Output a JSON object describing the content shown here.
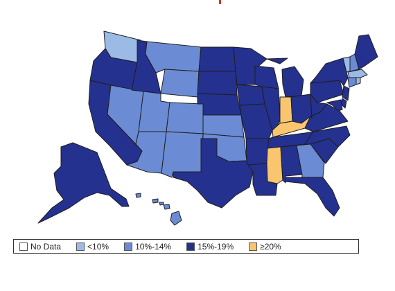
{
  "legend": {
    "items": [
      {
        "label": "No Data",
        "color": "#ffffff"
      },
      {
        "label": "<10%",
        "color": "#9bbbe6"
      },
      {
        "label": "10%-14%",
        "color": "#6b8bd4"
      },
      {
        "label": "15%-19%",
        "color": "#24318f"
      },
      {
        "label": "≥20%",
        "color": "#f9c56e"
      }
    ]
  },
  "map": {
    "category_colors": {
      "no_data": "#ffffff",
      "lt10": "#9bbbe6",
      "p10_14": "#6b8bd4",
      "p15_19": "#24318f",
      "ge20": "#f9c56e"
    },
    "states": {
      "WA": "lt10",
      "OR": "p15_19",
      "CA": "p15_19",
      "NV": "p10_14",
      "ID": "p15_19",
      "MT": "p10_14",
      "WY": "p10_14",
      "UT": "p10_14",
      "AZ": "p10_14",
      "CO": "p10_14",
      "NM": "p10_14",
      "ND": "p15_19",
      "SD": "p15_19",
      "NE": "p15_19",
      "KS": "p10_14",
      "OK": "p10_14",
      "TX": "p15_19",
      "MN": "p15_19",
      "IA": "p15_19",
      "MO": "p15_19",
      "AR": "p15_19",
      "LA": "p15_19",
      "WI": "p15_19",
      "IL": "p15_19",
      "MS": "ge20",
      "MI": "p15_19",
      "IN": "ge20",
      "KY": "ge20",
      "TN": "p15_19",
      "AL": "p15_19",
      "GA": "p10_14",
      "FL": "p15_19",
      "OH": "p15_19",
      "WV": "p15_19",
      "SC": "p15_19",
      "NC": "p15_19",
      "VA": "p15_19",
      "PA": "p15_19",
      "NY": "p15_19",
      "VT": "lt10",
      "NH": "p10_14",
      "ME": "p15_19",
      "MA": "lt10",
      "CT": "p10_14",
      "RI": "lt10",
      "NJ": "p15_19",
      "DE": "p15_19",
      "MD": "p15_19",
      "AK": "p15_19",
      "HI": "p10_14"
    }
  }
}
